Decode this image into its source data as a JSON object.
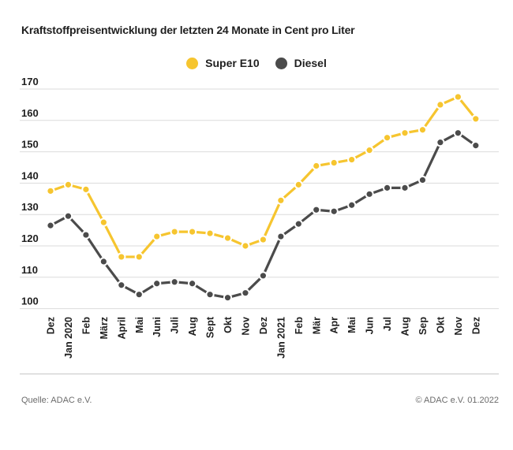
{
  "title": "Kraftstoffpreisentwicklung der letzten 24 Monate in Cent pro Liter",
  "footer": {
    "source": "Quelle: ADAC e.V.",
    "copyright": "© ADAC e.V. 01.2022"
  },
  "colors": {
    "super_e10": "#F6C52F",
    "diesel": "#4B4B4B",
    "gridline": "#DBDBDB",
    "axis_text": "#1F1F1F"
  },
  "chart_data": {
    "type": "line",
    "title": "Kraftstoffpreisentwicklung der letzten 24 Monate in Cent pro Liter",
    "unit": "Cent pro Liter",
    "grid": true,
    "legend_position": "top-center",
    "ylim": [
      100,
      170
    ],
    "yticks": [
      170,
      160,
      150,
      140,
      130,
      120,
      110,
      100
    ],
    "categories": [
      "Dez",
      "Jan 2020",
      "Feb",
      "März",
      "April",
      "Mai",
      "Juni",
      "Juli",
      "Aug",
      "Sept",
      "Okt",
      "Nov",
      "Dez",
      "Jan 2021",
      "Feb",
      "Mär",
      "Apr",
      "Mai",
      "Jun",
      "Jul",
      "Aug",
      "Sep",
      "Okt",
      "Nov",
      "Dez"
    ],
    "series": [
      {
        "name": "Super E10",
        "color": "#F6C52F",
        "values": [
          137.5,
          139.5,
          138,
          127.5,
          116.5,
          116.5,
          123,
          124.5,
          124.5,
          124,
          122.5,
          120,
          122,
          134.5,
          139.5,
          145.5,
          146.5,
          147.5,
          150.5,
          154.5,
          156,
          157,
          165,
          167.5,
          160.5
        ]
      },
      {
        "name": "Diesel",
        "color": "#4B4B4B",
        "values": [
          126.5,
          129.5,
          123.5,
          115,
          107.5,
          104.5,
          108,
          108.5,
          108,
          104.5,
          103.5,
          105,
          110.5,
          123,
          127,
          131.5,
          131,
          133,
          136.5,
          138.5,
          138.5,
          141,
          153,
          156,
          152
        ]
      }
    ]
  }
}
